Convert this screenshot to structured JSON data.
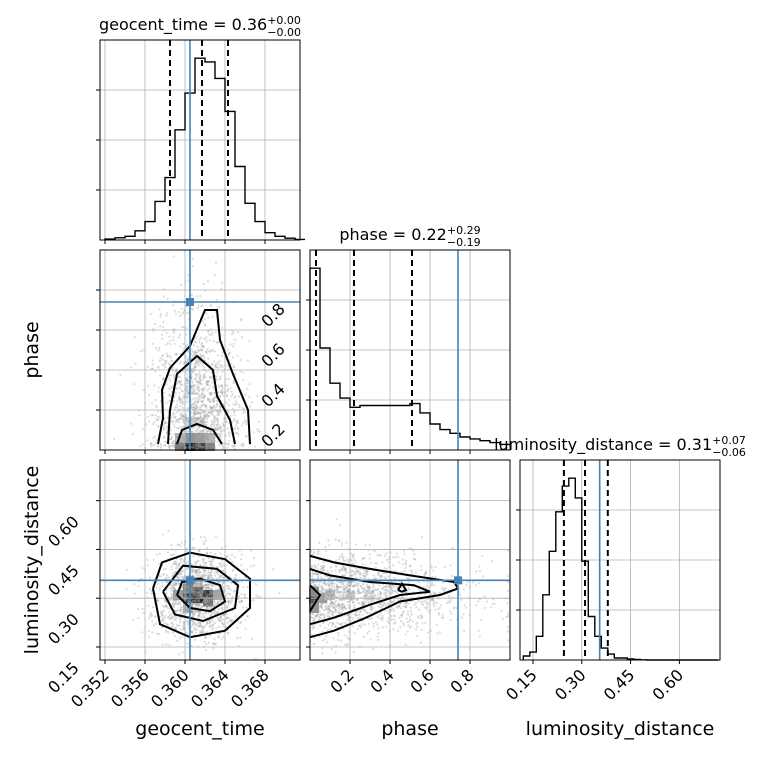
{
  "chart_data": {
    "type": "corner",
    "parameters": [
      "geocent_time",
      "phase",
      "luminosity_distance"
    ],
    "truths": {
      "geocent_time": 0.3605,
      "phase": 0.74,
      "luminosity_distance": 0.355
    },
    "titles": [
      {
        "param": "geocent_time",
        "name": "geocent_time",
        "value": "0.36",
        "plus": "+0.00",
        "minus": "−0.00"
      },
      {
        "param": "phase",
        "name": "phase",
        "value": "0.22",
        "plus": "+0.29",
        "minus": "−0.19"
      },
      {
        "param": "luminosity_distance",
        "name": "luminosity_distance",
        "value": "0.31",
        "plus": "+0.07",
        "minus": "−0.06"
      }
    ],
    "ranges": {
      "geocent_time": [
        0.3515,
        0.3715
      ],
      "phase": [
        0.0,
        1.0
      ],
      "luminosity_distance": [
        0.11,
        0.725
      ]
    },
    "ticks": {
      "geocent_time": [
        "0.352",
        "0.356",
        "0.360",
        "0.364",
        "0.368"
      ],
      "phase_x": [
        "0.2",
        "0.4",
        "0.6",
        "0.8"
      ],
      "phase_y": [
        "0.2",
        "0.4",
        "0.6",
        "0.8"
      ],
      "luminosity_distance": [
        "0.15",
        "0.30",
        "0.45",
        "0.60"
      ]
    },
    "quantiles": {
      "geocent_time": [
        0.3585,
        0.3617,
        0.3643
      ],
      "phase": [
        0.03,
        0.22,
        0.51
      ],
      "luminosity_distance": [
        0.245,
        0.31,
        0.38
      ]
    },
    "histograms": {
      "geocent_time": {
        "edges_start": 0.352,
        "bin_width": 0.001,
        "counts": [
          0.5,
          1.2,
          2,
          5,
          10,
          21,
          34,
          60,
          80,
          99,
          97,
          88,
          70,
          40,
          20,
          10,
          4,
          2,
          1,
          0.3
        ]
      },
      "phase": {
        "edges_start": 0.0,
        "bin_width": 0.05,
        "counts": [
          98,
          55,
          36,
          28,
          23,
          24,
          24,
          24,
          24,
          24,
          25,
          20,
          14,
          11,
          9,
          7,
          6,
          5,
          4,
          3
        ]
      },
      "luminosity_distance": {
        "edges_start": 0.12,
        "bin_width": 0.02,
        "counts": [
          2,
          4,
          12,
          33,
          55,
          75,
          88,
          92,
          82,
          50,
          22,
          12,
          6,
          3,
          1,
          1,
          0.5,
          0.3,
          0.1,
          0,
          0,
          0,
          0,
          0,
          0,
          0,
          0,
          0,
          0,
          0
        ]
      }
    },
    "contours": {
      "phase_vs_geocent_time": [
        [
          [
            0.3573,
            0.03
          ],
          [
            0.3578,
            0.16
          ],
          [
            0.3577,
            0.3
          ],
          [
            0.3585,
            0.41
          ],
          [
            0.3605,
            0.52
          ],
          [
            0.362,
            0.7
          ],
          [
            0.3632,
            0.7
          ],
          [
            0.3635,
            0.55
          ],
          [
            0.3648,
            0.38
          ],
          [
            0.3663,
            0.2
          ],
          [
            0.3665,
            0.03
          ]
        ],
        [
          [
            0.3583,
            0.03
          ],
          [
            0.3585,
            0.2
          ],
          [
            0.3592,
            0.38
          ],
          [
            0.3612,
            0.47
          ],
          [
            0.3628,
            0.4
          ],
          [
            0.3632,
            0.27
          ],
          [
            0.3645,
            0.15
          ],
          [
            0.365,
            0.03
          ]
        ],
        [
          [
            0.3592,
            0.03
          ],
          [
            0.3597,
            0.1
          ],
          [
            0.3612,
            0.13
          ],
          [
            0.3628,
            0.1
          ],
          [
            0.3637,
            0.03
          ]
        ]
      ],
      "luminosity_distance_vs_geocent_time": [
        [
          [
            0.3568,
            0.33
          ],
          [
            0.3575,
            0.22
          ],
          [
            0.3605,
            0.18
          ],
          [
            0.364,
            0.2
          ],
          [
            0.3665,
            0.27
          ],
          [
            0.3665,
            0.36
          ],
          [
            0.364,
            0.42
          ],
          [
            0.3605,
            0.44
          ],
          [
            0.3577,
            0.41
          ],
          [
            0.3568,
            0.33
          ]
        ],
        [
          [
            0.3578,
            0.32
          ],
          [
            0.359,
            0.25
          ],
          [
            0.3618,
            0.23
          ],
          [
            0.365,
            0.27
          ],
          [
            0.3653,
            0.34
          ],
          [
            0.3632,
            0.39
          ],
          [
            0.3598,
            0.4
          ],
          [
            0.3578,
            0.32
          ]
        ],
        [
          [
            0.3592,
            0.31
          ],
          [
            0.3605,
            0.27
          ],
          [
            0.3625,
            0.26
          ],
          [
            0.364,
            0.29
          ],
          [
            0.3635,
            0.34
          ],
          [
            0.3615,
            0.36
          ],
          [
            0.3597,
            0.35
          ],
          [
            0.3592,
            0.31
          ]
        ]
      ],
      "luminosity_distance_vs_phase": [
        [
          [
            0.0,
            0.43
          ],
          [
            0.12,
            0.41
          ],
          [
            0.3,
            0.39
          ],
          [
            0.5,
            0.37
          ],
          [
            0.72,
            0.35
          ],
          [
            0.74,
            0.33
          ],
          [
            0.65,
            0.31
          ],
          [
            0.45,
            0.29
          ],
          [
            0.28,
            0.24
          ],
          [
            0.12,
            0.2
          ],
          [
            0.0,
            0.18
          ]
        ],
        [
          [
            0.0,
            0.39
          ],
          [
            0.1,
            0.37
          ],
          [
            0.3,
            0.35
          ],
          [
            0.52,
            0.34
          ],
          [
            0.6,
            0.32
          ],
          [
            0.45,
            0.31
          ],
          [
            0.3,
            0.28
          ],
          [
            0.12,
            0.24
          ],
          [
            0.0,
            0.22
          ]
        ],
        [
          [
            0.0,
            0.34
          ],
          [
            0.05,
            0.31
          ],
          [
            0.0,
            0.26
          ]
        ],
        [
          [
            0.44,
            0.325
          ],
          [
            0.46,
            0.345
          ],
          [
            0.48,
            0.325
          ],
          [
            0.46,
            0.32
          ],
          [
            0.44,
            0.325
          ]
        ]
      ]
    },
    "density_cells": {
      "phase_vs_geocent_time": [
        [
          0.3605,
          0.02,
          0.95
        ],
        [
          0.3615,
          0.02,
          0.8
        ],
        [
          0.3595,
          0.02,
          0.6
        ],
        [
          0.3625,
          0.02,
          0.55
        ],
        [
          0.3605,
          0.06,
          0.45
        ],
        [
          0.3615,
          0.06,
          0.4
        ],
        [
          0.3595,
          0.06,
          0.3
        ],
        [
          0.3625,
          0.06,
          0.3
        ],
        [
          0.3605,
          0.14,
          0.18
        ],
        [
          0.3615,
          0.14,
          0.15
        ],
        [
          0.3605,
          0.3,
          0.12
        ],
        [
          0.3615,
          0.45,
          0.1
        ]
      ],
      "luminosity_distance_vs_geocent_time": [
        [
          0.3613,
          0.3,
          0.95
        ],
        [
          0.3603,
          0.3,
          0.85
        ],
        [
          0.3623,
          0.31,
          0.9
        ],
        [
          0.3613,
          0.32,
          0.7
        ],
        [
          0.3603,
          0.33,
          0.55
        ],
        [
          0.3623,
          0.29,
          0.6
        ],
        [
          0.3593,
          0.31,
          0.4
        ],
        [
          0.3633,
          0.31,
          0.35
        ],
        [
          0.3613,
          0.35,
          0.25
        ],
        [
          0.3603,
          0.27,
          0.3
        ]
      ],
      "luminosity_distance_vs_phase": [
        [
          0.02,
          0.3,
          0.75
        ],
        [
          0.02,
          0.32,
          0.5
        ],
        [
          0.06,
          0.3,
          0.4
        ],
        [
          0.02,
          0.27,
          0.45
        ],
        [
          0.1,
          0.31,
          0.25
        ],
        [
          0.2,
          0.31,
          0.15
        ],
        [
          0.3,
          0.31,
          0.1
        ]
      ]
    }
  }
}
